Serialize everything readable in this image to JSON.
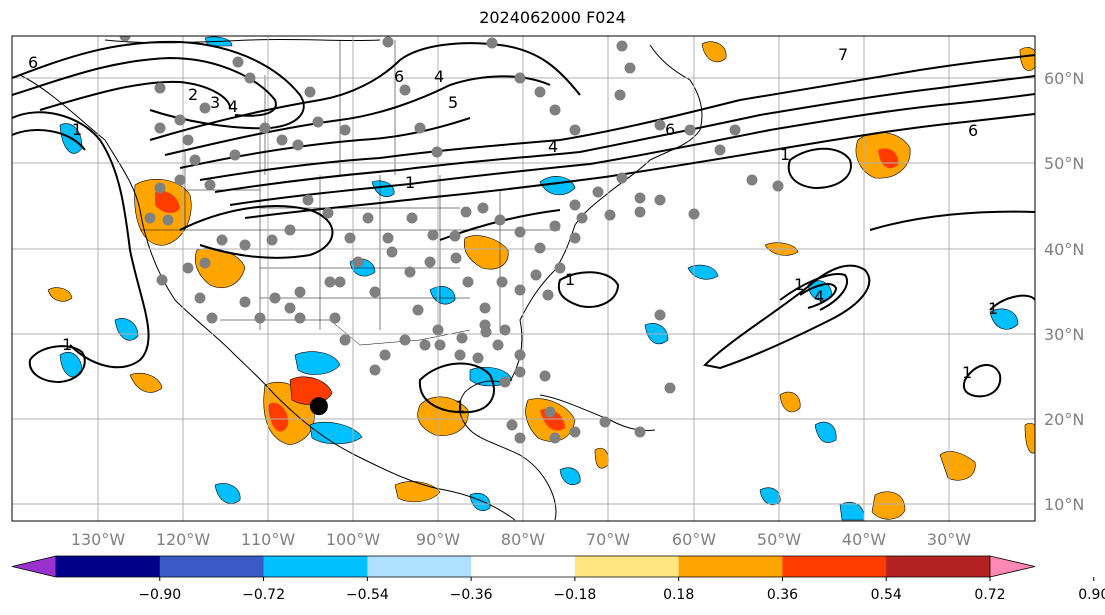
{
  "title": "2024062000 F024",
  "map": {
    "projection": "plate-carree",
    "lon_range": [
      -140,
      -20
    ],
    "lat_range": [
      8,
      65
    ],
    "grid": true,
    "lon_labels": [
      "130°W",
      "120°W",
      "110°W",
      "100°W",
      "90°W",
      "80°W",
      "70°W",
      "60°W",
      "50°W",
      "40°W",
      "30°W"
    ],
    "lat_labels": [
      "10°N",
      "20°N",
      "30°N",
      "40°N",
      "50°N",
      "60°N"
    ],
    "contour_labels": [
      "6",
      "2",
      "3",
      "4",
      "6",
      "4",
      "5",
      "4",
      "6",
      "1",
      "6",
      "7",
      "1",
      "1",
      "1",
      "1",
      "1",
      "1",
      "4",
      "1",
      "1"
    ]
  },
  "colorbar": {
    "ticks": [
      "−0.90",
      "−0.72",
      "−0.54",
      "−0.36",
      "−0.18",
      "0.18",
      "0.36",
      "0.54",
      "0.72",
      "0.90"
    ],
    "colors": [
      "#9932cc",
      "#00008b",
      "#3a5bc7",
      "#00bfff",
      "#b0e0ff",
      "#ffffff",
      "#ffe680",
      "#ffa500",
      "#ff3c00",
      "#b22222",
      "#ff88b4"
    ],
    "extend": "both"
  },
  "marker": {
    "lon": -104,
    "lat": 21.5,
    "color": "#000000"
  },
  "station_dots_color": "#808080"
}
